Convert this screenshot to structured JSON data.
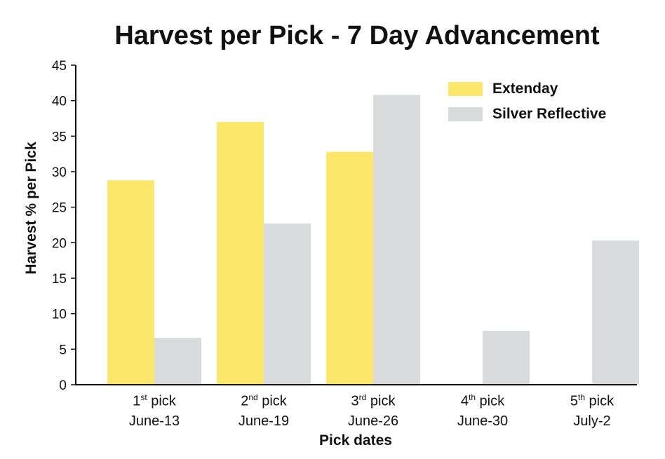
{
  "chart_data": {
    "type": "bar",
    "title": "Harvest per Pick - 7 Day Advancement",
    "xlabel": "Pick dates",
    "ylabel": "Harvest % per Pick",
    "ylim": [
      0,
      45
    ],
    "yticks": [
      "0",
      "5",
      "10",
      "15",
      "20",
      "25",
      "30",
      "35",
      "40",
      "45"
    ],
    "grid": false,
    "legend_position": "top-right",
    "categories": [
      {
        "num": "1",
        "sup": "st",
        "word": " pick",
        "date": "June-13"
      },
      {
        "num": "2",
        "sup": "nd",
        "word": " pick",
        "date": "June-19"
      },
      {
        "num": "3",
        "sup": "rd",
        "word": " pick",
        "date": "June-26"
      },
      {
        "num": "4",
        "sup": "th",
        "word": " pick",
        "date": "June-30"
      },
      {
        "num": "5",
        "sup": "th",
        "word": " pick",
        "date": "July-2"
      }
    ],
    "series": [
      {
        "name": "Extenday",
        "color": "#fbe76a",
        "values": [
          28.8,
          37.0,
          32.8,
          0,
          0
        ]
      },
      {
        "name": "Silver Reflective",
        "color": "#d9dadc",
        "values": [
          6.6,
          22.7,
          40.8,
          7.6,
          20.3
        ]
      }
    ]
  }
}
